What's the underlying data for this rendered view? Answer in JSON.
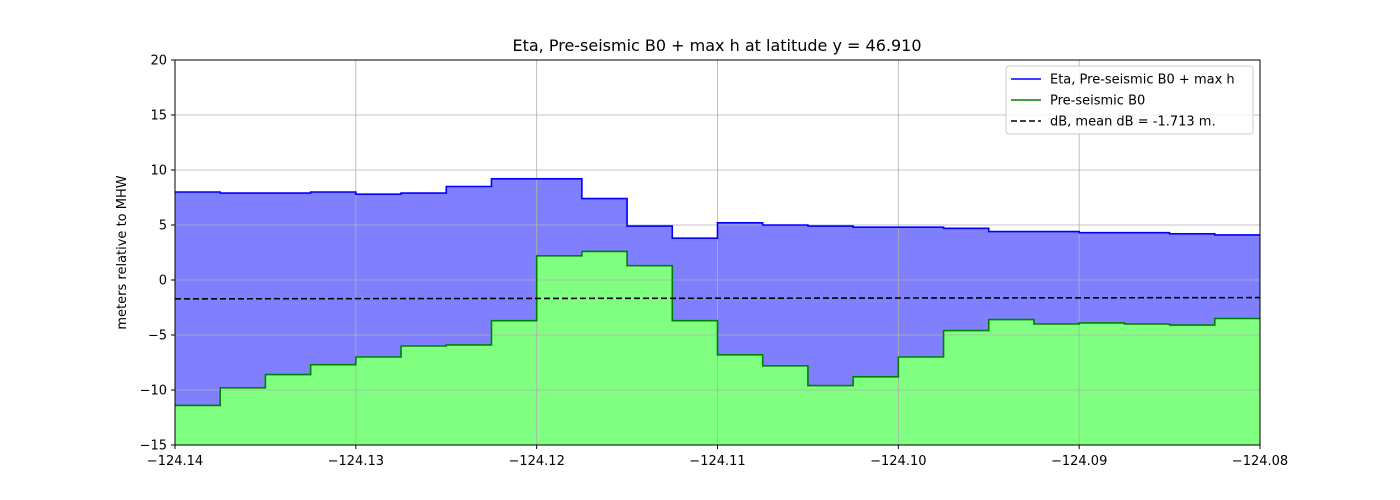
{
  "chart_data": {
    "type": "area",
    "title": "Eta, Pre-seismic B0 + max h at latitude y = 46.910",
    "xlabel": "",
    "ylabel": "meters relative to MHW",
    "xlim": [
      -124.14,
      -124.08
    ],
    "ylim": [
      -15,
      20
    ],
    "x_ticks": [
      -124.14,
      -124.13,
      -124.12,
      -124.11,
      -124.1,
      -124.09,
      -124.08
    ],
    "x_tick_labels": [
      "−124.14",
      "−124.13",
      "−124.12",
      "−124.11",
      "−124.10",
      "−124.09",
      "−124.08"
    ],
    "y_ticks": [
      -15,
      -10,
      -5,
      0,
      5,
      10,
      15,
      20
    ],
    "y_tick_labels": [
      "−15",
      "−10",
      "−5",
      "0",
      "5",
      "10",
      "15",
      "20"
    ],
    "grid": true,
    "legend_position": "top-right",
    "colors": {
      "eta_line": "#0000ff",
      "eta_fill": "#8080ff",
      "b0_line": "#008000",
      "b0_fill": "#80ff80",
      "db_line": "#000000"
    },
    "x_edges": [
      -124.14,
      -124.1375,
      -124.135,
      -124.1325,
      -124.13,
      -124.1275,
      -124.125,
      -124.1225,
      -124.12,
      -124.1175,
      -124.115,
      -124.1125,
      -124.11,
      -124.1075,
      -124.105,
      -124.1025,
      -124.1,
      -124.0975,
      -124.095,
      -124.0925,
      -124.09,
      -124.0875,
      -124.085,
      -124.0825,
      -124.08
    ],
    "series": [
      {
        "name": "Eta, Pre-seismic B0 + max h",
        "style": "step-solid",
        "values": [
          8.0,
          7.9,
          7.9,
          8.0,
          7.8,
          7.9,
          8.5,
          9.2,
          9.2,
          7.4,
          4.9,
          3.8,
          5.2,
          5.0,
          4.9,
          4.8,
          4.8,
          4.7,
          4.4,
          4.4,
          4.3,
          4.3,
          4.2,
          4.1
        ]
      },
      {
        "name": "Pre-seismic B0",
        "style": "step-solid",
        "values": [
          -11.4,
          -9.8,
          -8.6,
          -7.7,
          -7.0,
          -6.0,
          -5.9,
          -3.7,
          2.2,
          2.6,
          1.3,
          -3.7,
          -6.8,
          -7.8,
          -9.6,
          -8.8,
          -7.0,
          -4.6,
          -3.6,
          -4.0,
          -3.9,
          -4.0,
          -4.1,
          -3.5
        ]
      },
      {
        "name": "dB, mean dB = -1.713 m.",
        "style": "dashed",
        "x": [
          -124.14,
          -124.08
        ],
        "values": [
          -1.713,
          -1.6
        ]
      }
    ]
  }
}
